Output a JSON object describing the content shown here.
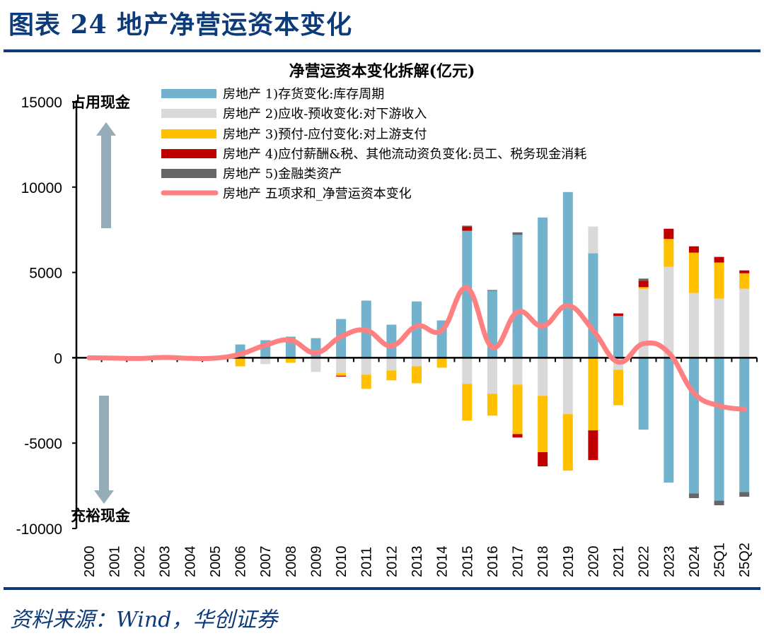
{
  "header": {
    "figure_title": "图表 24  地产净营运资本变化"
  },
  "footer": {
    "source": "资料来源：Wind，华创证券"
  },
  "chart_data": {
    "type": "bar",
    "stacked": true,
    "title": "净营运资本变化拆解(亿元)",
    "xlabel": "",
    "ylabel": "",
    "ylim": [
      -10000,
      15000
    ],
    "yticks": [
      15000,
      10000,
      5000,
      0,
      -5000,
      -10000
    ],
    "grid": false,
    "legend_position": "top",
    "annotations": {
      "top": "占用现金",
      "bottom": "充裕现金"
    },
    "categories": [
      "2000",
      "2001",
      "2002",
      "2003",
      "2004",
      "2005",
      "2006",
      "2007",
      "2008",
      "2009",
      "2010",
      "2011",
      "2012",
      "2013",
      "2014",
      "2015",
      "2016",
      "2017",
      "2018",
      "2019",
      "2020",
      "2021",
      "2022",
      "2023",
      "2024",
      "25Q1",
      "25Q2"
    ],
    "series": [
      {
        "name": "房地产 1)存货变化:库存周期",
        "color": "#72B2CC",
        "kind": "bar",
        "values": [
          0,
          0,
          0,
          0,
          0,
          0,
          780,
          1030,
          1240,
          1150,
          2270,
          3350,
          1940,
          3300,
          2190,
          7440,
          3920,
          7200,
          8220,
          9710,
          6120,
          2450,
          -4210,
          -7310,
          -7950,
          -8370,
          -7870
        ]
      },
      {
        "name": "房地产 2)应收-预收变化:对下游收入",
        "color": "#D9D9D9",
        "kind": "bar",
        "values": [
          0,
          0,
          0,
          0,
          0,
          0,
          0,
          -370,
          0,
          -830,
          -900,
          -990,
          -740,
          -500,
          0,
          -1530,
          -2100,
          -1570,
          -2230,
          -3300,
          1570,
          -700,
          4040,
          5330,
          3800,
          3470,
          4050
        ]
      },
      {
        "name": "房地产 3)预付-应付变化:对上游支付",
        "color": "#FFC000",
        "kind": "bar",
        "values": [
          0,
          0,
          0,
          0,
          0,
          0,
          -500,
          0,
          -290,
          0,
          -150,
          -830,
          -580,
          -990,
          -580,
          -2150,
          -1290,
          -2900,
          -3300,
          -3310,
          -4250,
          -2080,
          100,
          1630,
          2360,
          2110,
          900
        ]
      },
      {
        "name": "房地产 4)应付薪酬&税、其他流动资负变化:员工、税务现金消耗",
        "color": "#C00000",
        "kind": "bar",
        "values": [
          0,
          0,
          0,
          0,
          0,
          0,
          0,
          0,
          0,
          0,
          -50,
          0,
          0,
          0,
          0,
          250,
          0,
          -200,
          -830,
          0,
          -1740,
          150,
          370,
          600,
          370,
          330,
          170
        ]
      },
      {
        "name": "房地产 5)金融类资产",
        "color": "#666666",
        "kind": "bar",
        "values": [
          0,
          0,
          0,
          0,
          0,
          0,
          0,
          0,
          0,
          0,
          0,
          0,
          0,
          0,
          0,
          50,
          50,
          150,
          0,
          0,
          0,
          0,
          130,
          0,
          -270,
          -270,
          -270
        ]
      },
      {
        "name": "房地产 五项求和_净营运资本变化",
        "color": "#FF8080",
        "kind": "line",
        "values": [
          0,
          -20,
          -40,
          20,
          -30,
          -20,
          210,
          740,
          1030,
          290,
          1240,
          1610,
          700,
          1860,
          1610,
          4090,
          620,
          2690,
          1860,
          3060,
          1610,
          -250,
          830,
          300,
          -2060,
          -2810,
          -3020
        ]
      }
    ]
  }
}
